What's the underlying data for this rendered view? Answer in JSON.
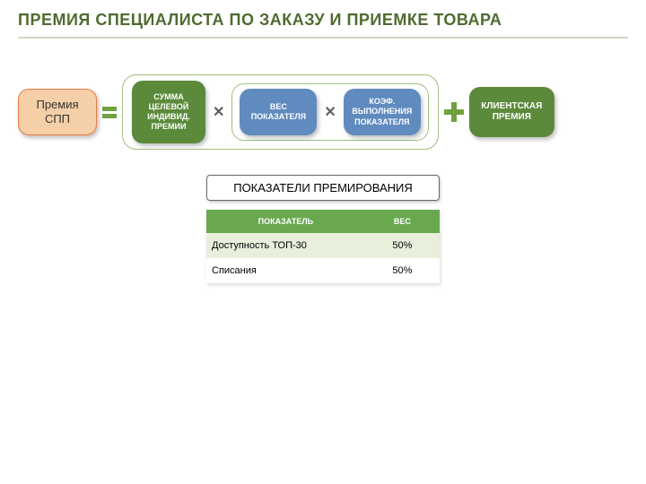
{
  "title": {
    "text": "ПРЕМИЯ СПЕЦИАЛИСТА ПО ЗАКАЗУ И ПРИЕМКЕ ТОВАРА",
    "color": "#4f6b2f"
  },
  "colors": {
    "hr": "#d4d4c4",
    "eq_bar": "#70a040",
    "op_mult": "#5f5f5f",
    "plus": "#70a040",
    "group_border": "#9fbf7f"
  },
  "formula": {
    "spp": {
      "line1": "Премия",
      "line2": "СПП",
      "bg": "#f5cfa8",
      "border": "#e77c3c",
      "text": "#333333"
    },
    "green": {
      "label": "СУММА ЦЕЛЕВОЙ ИНДИВИД. ПРЕМИИ",
      "bg": "#5a8a3a",
      "text": "#ffffff"
    },
    "blue1": {
      "label": "ВЕС ПОКАЗАТЕЛЯ",
      "bg": "#5f8bbf",
      "text": "#ffffff"
    },
    "blue2": {
      "label": "КОЭФ. ВЫПОЛНЕНИЯ ПОКАЗАТЕЛЯ",
      "bg": "#5f8bbf",
      "text": "#ffffff"
    },
    "client": {
      "label": "КЛИЕНТСКАЯ ПРЕМИЯ",
      "bg": "#5a8a3a",
      "text": "#ffffff"
    }
  },
  "section_label": "ПОКАЗАТЕЛИ ПРЕМИРОВАНИЯ",
  "table": {
    "header_bg": "#6aa84f",
    "row_alt_bg": "#e8f0dc",
    "row_bg": "#ffffff",
    "columns": [
      "ПОКАЗАТЕЛЬ",
      "ВЕС"
    ],
    "col_widths": [
      "68%",
      "32%"
    ],
    "rows": [
      [
        "Доступность ТОП-30",
        "50%"
      ],
      [
        "Списания",
        "50%"
      ]
    ]
  }
}
